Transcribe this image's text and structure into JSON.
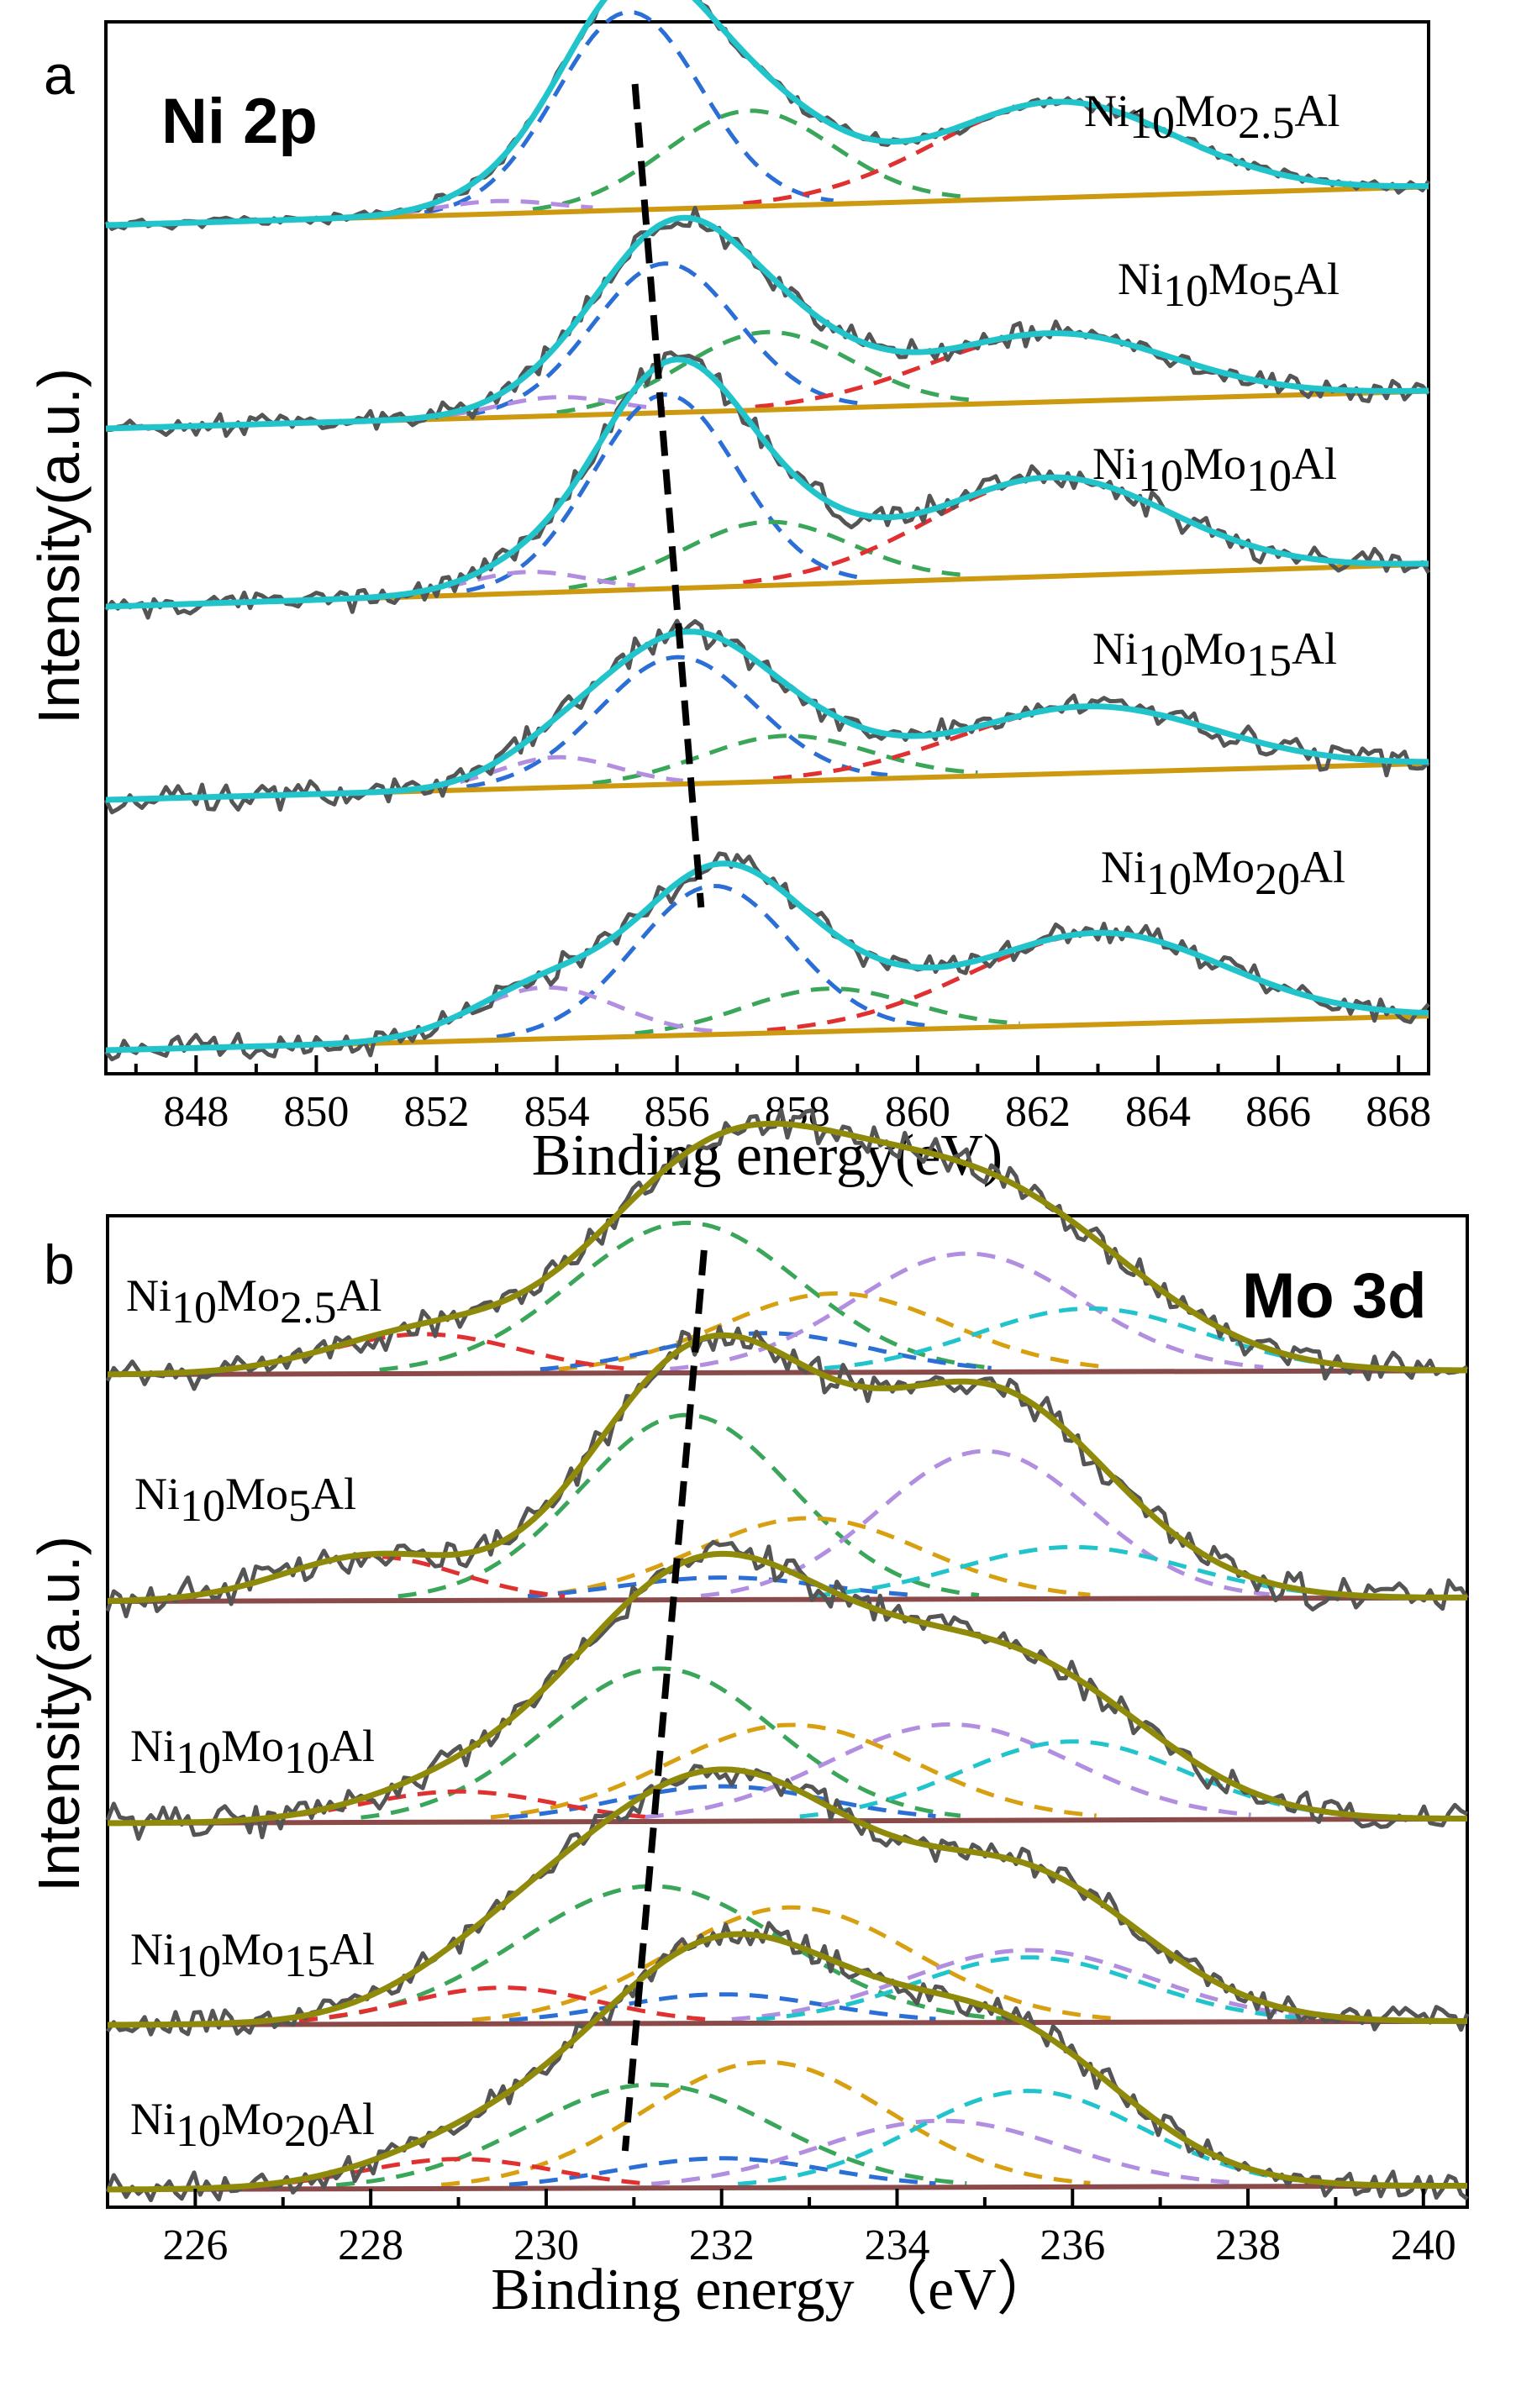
{
  "chart_data": [
    {
      "panel": "a",
      "title": "Ni 2p",
      "type": "line",
      "xlabel": "Binding energy(eV)",
      "ylabel": "Intensity(a.u.)",
      "xlim": [
        846.5,
        868.5
      ],
      "xticks": [
        848,
        850,
        852,
        854,
        856,
        858,
        860,
        862,
        864,
        866,
        868
      ],
      "peak_guide": [
        855.3,
        855.9,
        856.1,
        856.2,
        856.4
      ],
      "colors": {
        "raw": "#555555",
        "envelope": "#22c4cc",
        "background": "#cc9910",
        "comp1": "#2b6fd6",
        "comp2": "#3aa65a",
        "comp3": "#e03030",
        "comp4": "#b28ee0"
      },
      "series": [
        {
          "name": "Ni10Mo2.5Al",
          "label": {
            "base": "Ni",
            "s1": "10",
            "mid": "Mo",
            "s2": "2.5",
            "end": "Al"
          },
          "bg": [
            0.0,
            0.12
          ],
          "noise": 0.015,
          "peaks": [
            {
              "c": 855.2,
              "a": 0.62,
              "w": 1.2
            },
            {
              "c": 857.2,
              "a": 0.3,
              "w": 1.4
            },
            {
              "c": 862.3,
              "a": 0.3,
              "w": 2.0
            },
            {
              "c": 853.0,
              "a": 0.04,
              "w": 1.0
            }
          ]
        },
        {
          "name": "Ni10Mo5Al",
          "label": {
            "base": "Ni",
            "s1": "10",
            "mid": "Mo",
            "s2": "5",
            "end": "Al"
          },
          "bg": [
            0.0,
            0.12
          ],
          "noise": 0.03,
          "peaks": [
            {
              "c": 855.8,
              "a": 0.48,
              "w": 1.2
            },
            {
              "c": 857.5,
              "a": 0.25,
              "w": 1.4
            },
            {
              "c": 862.2,
              "a": 0.22,
              "w": 2.0
            },
            {
              "c": 854.0,
              "a": 0.06,
              "w": 1.0
            }
          ]
        },
        {
          "name": "Ni10Mo10Al",
          "label": {
            "base": "Ni",
            "s1": "10",
            "mid": "Mo",
            "s2": "10",
            "end": "Al"
          },
          "bg": [
            0.0,
            0.12
          ],
          "noise": 0.03,
          "peaks": [
            {
              "c": 855.8,
              "a": 0.55,
              "w": 1.2
            },
            {
              "c": 857.5,
              "a": 0.18,
              "w": 1.4
            },
            {
              "c": 862.2,
              "a": 0.28,
              "w": 2.0
            },
            {
              "c": 853.5,
              "a": 0.06,
              "w": 1.0
            }
          ]
        },
        {
          "name": "Ni10Mo15Al",
          "label": {
            "base": "Ni",
            "s1": "10",
            "mid": "Mo",
            "s2": "15",
            "end": "Al"
          },
          "bg": [
            0.0,
            0.12
          ],
          "noise": 0.035,
          "peaks": [
            {
              "c": 856.0,
              "a": 0.42,
              "w": 1.3
            },
            {
              "c": 857.8,
              "a": 0.15,
              "w": 1.4
            },
            {
              "c": 862.8,
              "a": 0.22,
              "w": 2.1
            },
            {
              "c": 854.0,
              "a": 0.1,
              "w": 1.0
            }
          ]
        },
        {
          "name": "Ni10Mo20Al",
          "label": {
            "base": "Ni",
            "s1": "10",
            "mid": "Mo",
            "s2": "20",
            "end": "Al"
          },
          "bg": [
            0.0,
            0.12
          ],
          "noise": 0.035,
          "peaks": [
            {
              "c": 856.6,
              "a": 0.52,
              "w": 1.3
            },
            {
              "c": 858.5,
              "a": 0.15,
              "w": 1.4
            },
            {
              "c": 863.0,
              "a": 0.32,
              "w": 2.1
            },
            {
              "c": 853.8,
              "a": 0.18,
              "w": 1.2
            }
          ]
        }
      ]
    },
    {
      "panel": "b",
      "title": "Mo 3d",
      "type": "line",
      "xlabel": "Binding energy （eV）",
      "ylabel": "Intensity(a.u.)",
      "xlim": [
        225,
        240.5
      ],
      "xticks": [
        226,
        228,
        230,
        232,
        234,
        236,
        238,
        240
      ],
      "peak_guide": [
        231.8,
        231.6,
        231.3,
        231.1,
        230.9
      ],
      "colors": {
        "raw": "#555555",
        "envelope": "#8f8a0a",
        "background": "#8a4a4a",
        "comp1": "#3aa65a",
        "comp2": "#d8a010",
        "comp3": "#2b6fd6",
        "comp4": "#b28ee0",
        "comp5": "#22c4cc",
        "comp6": "#e03030"
      },
      "series": [
        {
          "name": "Ni10Mo2.5Al",
          "label": {
            "base": "Ni",
            "s1": "10",
            "mid": "Mo",
            "s2": "2.5",
            "end": "Al"
          },
          "bg": [
            0.0,
            0.01
          ],
          "noise": 0.03,
          "peaks": [
            {
              "c": 231.6,
              "a": 0.38,
              "w": 1.3
            },
            {
              "c": 233.3,
              "a": 0.2,
              "w": 1.3
            },
            {
              "c": 232.5,
              "a": 0.1,
              "w": 1.2
            },
            {
              "c": 234.8,
              "a": 0.3,
              "w": 1.3
            },
            {
              "c": 236.2,
              "a": 0.16,
              "w": 1.3
            },
            {
              "c": 228.6,
              "a": 0.1,
              "w": 1.1
            }
          ]
        },
        {
          "name": "Ni10Mo5Al",
          "label": {
            "base": "Ni",
            "s1": "10",
            "mid": "Mo",
            "s2": "5",
            "end": "Al"
          },
          "bg": [
            0.0,
            0.01
          ],
          "noise": 0.035,
          "peaks": [
            {
              "c": 231.6,
              "a": 0.5,
              "w": 1.2
            },
            {
              "c": 233.0,
              "a": 0.22,
              "w": 1.3
            },
            {
              "c": 232.0,
              "a": 0.06,
              "w": 1.2
            },
            {
              "c": 235.0,
              "a": 0.4,
              "w": 1.2
            },
            {
              "c": 236.0,
              "a": 0.14,
              "w": 1.3
            },
            {
              "c": 228.0,
              "a": 0.12,
              "w": 1.0
            }
          ]
        },
        {
          "name": "Ni10Mo10Al",
          "label": {
            "base": "Ni",
            "s1": "10",
            "mid": "Mo",
            "s2": "10",
            "end": "Al"
          },
          "bg": [
            0.0,
            0.01
          ],
          "noise": 0.03,
          "peaks": [
            {
              "c": 231.3,
              "a": 0.35,
              "w": 1.3
            },
            {
              "c": 232.8,
              "a": 0.22,
              "w": 1.4
            },
            {
              "c": 232.0,
              "a": 0.08,
              "w": 1.2
            },
            {
              "c": 234.6,
              "a": 0.22,
              "w": 1.4
            },
            {
              "c": 236.0,
              "a": 0.18,
              "w": 1.3
            },
            {
              "c": 229.0,
              "a": 0.07,
              "w": 1.1
            }
          ]
        },
        {
          "name": "Ni10Mo15Al",
          "label": {
            "base": "Ni",
            "s1": "10",
            "mid": "Mo",
            "s2": "15",
            "end": "Al"
          },
          "bg": [
            0.0,
            0.01
          ],
          "noise": 0.03,
          "peaks": [
            {
              "c": 231.2,
              "a": 0.38,
              "w": 1.5
            },
            {
              "c": 232.8,
              "a": 0.32,
              "w": 1.4
            },
            {
              "c": 232.0,
              "a": 0.08,
              "w": 1.2
            },
            {
              "c": 235.5,
              "a": 0.2,
              "w": 1.4
            },
            {
              "c": 235.5,
              "a": 0.18,
              "w": 1.3
            },
            {
              "c": 229.5,
              "a": 0.1,
              "w": 1.1
            }
          ]
        },
        {
          "name": "Ni10Mo20Al",
          "label": {
            "base": "Ni",
            "s1": "10",
            "mid": "Mo",
            "s2": "20",
            "end": "Al"
          },
          "bg": [
            0.0,
            0.01
          ],
          "noise": 0.03,
          "peaks": [
            {
              "c": 231.2,
              "a": 0.28,
              "w": 1.4
            },
            {
              "c": 232.5,
              "a": 0.34,
              "w": 1.4
            },
            {
              "c": 232.0,
              "a": 0.08,
              "w": 1.2
            },
            {
              "c": 234.5,
              "a": 0.18,
              "w": 1.4
            },
            {
              "c": 235.5,
              "a": 0.26,
              "w": 1.3
            },
            {
              "c": 229.0,
              "a": 0.08,
              "w": 1.1
            }
          ]
        }
      ]
    }
  ]
}
